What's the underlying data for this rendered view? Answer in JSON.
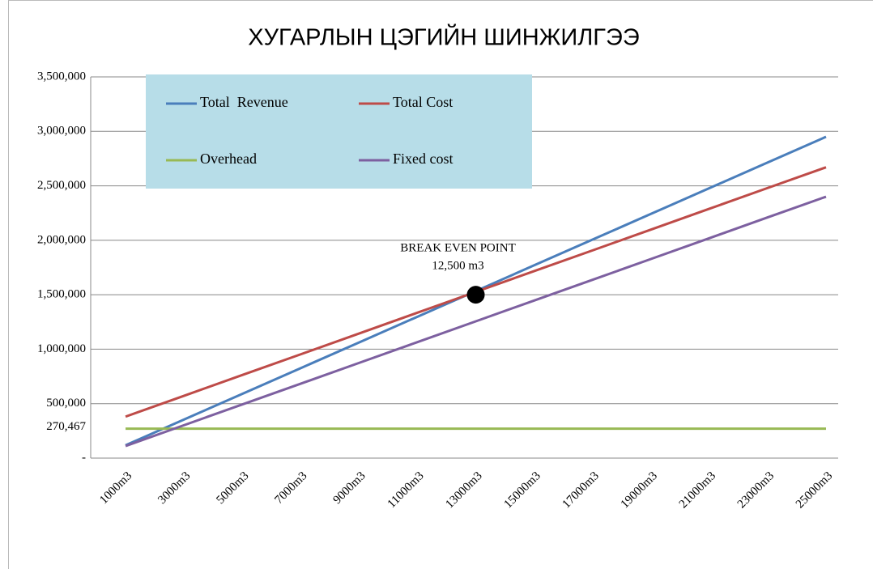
{
  "chart_data": {
    "type": "line",
    "title": "ХУГАРЛЫН ЦЭГИЙН ШИНЖИЛГЭЭ",
    "categories": [
      "1000m3",
      "3000m3",
      "5000m3",
      "7000m3",
      "9000m3",
      "11000m3",
      "13000m3",
      "15000m3",
      "17000m3",
      "19000m3",
      "21000m3",
      "23000m3",
      "25000m3"
    ],
    "series": [
      {
        "name": "Total  Revenue",
        "color": "#4a7ebb",
        "values": [
          118000,
          354000,
          590000,
          826000,
          1062000,
          1298000,
          1534000,
          1770000,
          2006000,
          2242000,
          2478000,
          2714000,
          2950000
        ]
      },
      {
        "name": "Total Cost",
        "color": "#be4b48",
        "values": [
          381000,
          572000,
          763000,
          953000,
          1144000,
          1335000,
          1526000,
          1717000,
          1907000,
          2098000,
          2289000,
          2480000,
          2670000
        ]
      },
      {
        "name": "Overhead",
        "color": "#98b954",
        "values": [
          270467,
          270467,
          270467,
          270467,
          270467,
          270467,
          270467,
          270467,
          270467,
          270467,
          270467,
          270467,
          270467
        ]
      },
      {
        "name": "Fixed cost",
        "color": "#7d60a0",
        "values": [
          111000,
          302000,
          493000,
          683000,
          874000,
          1065000,
          1256000,
          1447000,
          1637000,
          1828000,
          2019000,
          2210000,
          2400000
        ]
      }
    ],
    "ylim": [
      0,
      3500000
    ],
    "yticks": [
      {
        "value": 0,
        "label": "-"
      },
      {
        "value": 500000,
        "label": "500,000"
      },
      {
        "value": 1000000,
        "label": "1,000,000"
      },
      {
        "value": 1500000,
        "label": "1,500,000"
      },
      {
        "value": 2000000,
        "label": "2,000,000"
      },
      {
        "value": 2500000,
        "label": "2,500,000"
      },
      {
        "value": 3000000,
        "label": "3,000,000"
      },
      {
        "value": 3500000,
        "label": "3,500,000"
      }
    ],
    "y_annotation": {
      "value": 270467,
      "label": "270,467"
    },
    "break_even": {
      "title": "BREAK EVEN POINT",
      "label": "12,500 m3",
      "category": "13000m3",
      "value": 1500000
    },
    "grid": true,
    "legend": "top-left"
  }
}
